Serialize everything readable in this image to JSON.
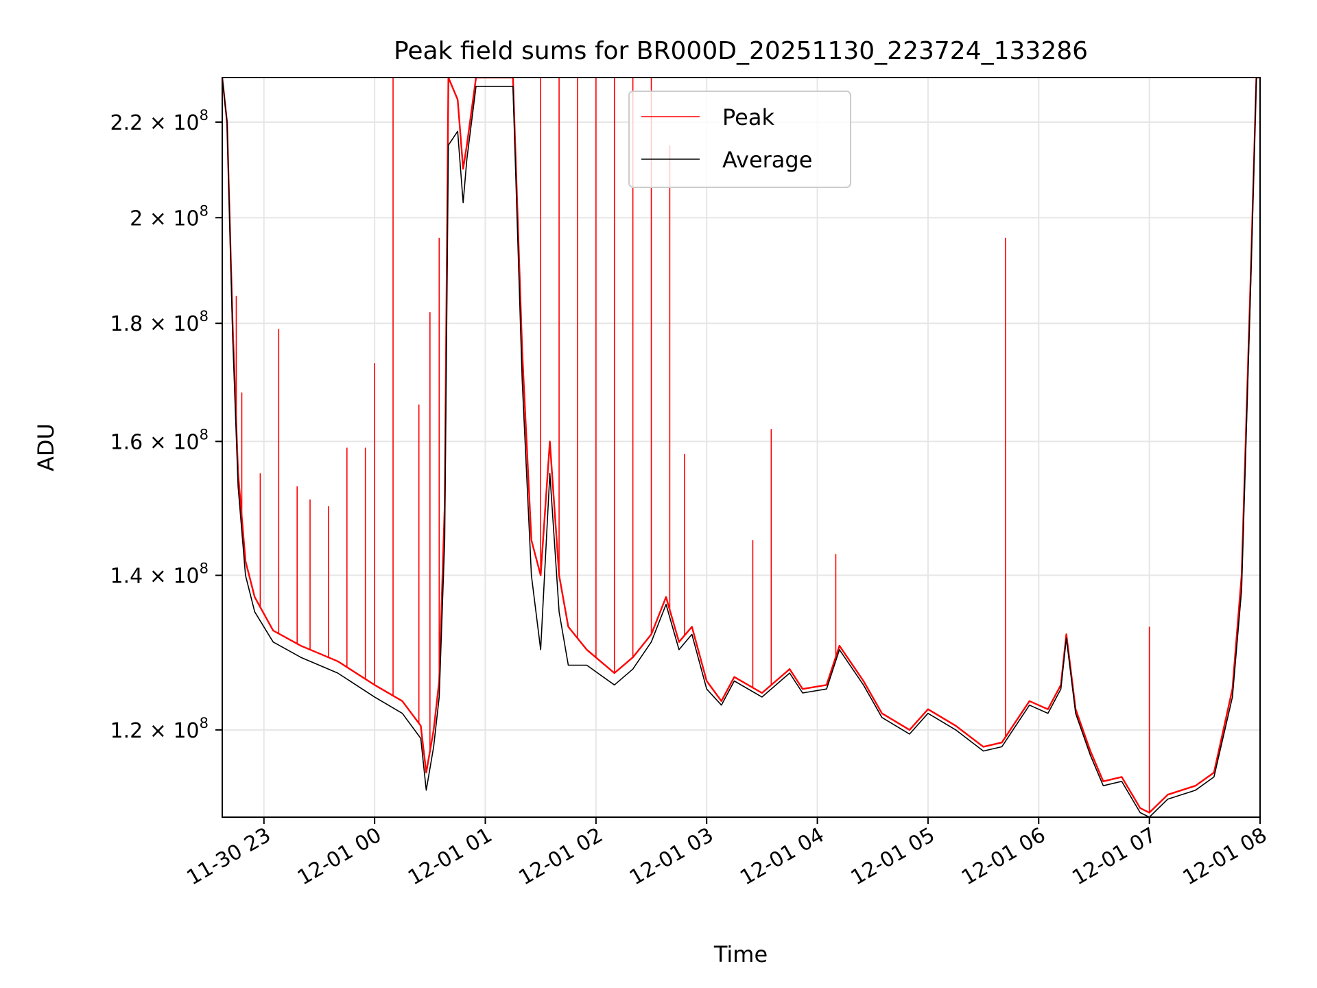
{
  "chart_data": {
    "type": "line",
    "title": "Peak field sums for BR000D_20251130_223724_133286",
    "xlabel": "Time",
    "ylabel": "ADU",
    "y_scale": "log",
    "xlim": [
      "2025-11-30T22:37:24",
      "2025-12-01T08:00:00"
    ],
    "ylim": [
      110000000.0,
      230000000.0
    ],
    "x_tick_labels": [
      "11-30 23",
      "12-01 00",
      "12-01 01",
      "12-01 02",
      "12-01 03",
      "12-01 04",
      "12-01 05",
      "12-01 06",
      "12-01 07",
      "12-01 08"
    ],
    "x_ticks": [
      "2025-11-30T23:00",
      "2025-12-01T00:00",
      "2025-12-01T01:00",
      "2025-12-01T02:00",
      "2025-12-01T03:00",
      "2025-12-01T04:00",
      "2025-12-01T05:00",
      "2025-12-01T06:00",
      "2025-12-01T07:00",
      "2025-12-01T08:00"
    ],
    "y_tick_labels": [
      {
        "mantissa": "1.2",
        "exponent": "8"
      },
      {
        "mantissa": "1.4",
        "exponent": "8"
      },
      {
        "mantissa": "1.6",
        "exponent": "8"
      },
      {
        "mantissa": "1.8",
        "exponent": "8"
      },
      {
        "mantissa": "2",
        "exponent": "8"
      },
      {
        "mantissa": "2.2",
        "exponent": "8"
      }
    ],
    "y_ticks": [
      120000000.0,
      140000000.0,
      160000000.0,
      180000000.0,
      200000000.0,
      220000000.0
    ],
    "grid": true,
    "legend_position": "upper-center",
    "series": [
      {
        "name": "Peak",
        "color": "#ff0000",
        "baseline": [
          [
            "2025-11-30T22:37:24",
            230000000.0
          ],
          [
            "2025-11-30T22:40",
            220000000.0
          ],
          [
            "2025-11-30T22:43",
            180000000.0
          ],
          [
            "2025-11-30T22:46",
            155000000.0
          ],
          [
            "2025-11-30T22:50",
            142000000.0
          ],
          [
            "2025-11-30T22:55",
            137000000.0
          ],
          [
            "2025-11-30T23:05",
            132500000.0
          ],
          [
            "2025-11-30T23:20",
            130500000.0
          ],
          [
            "2025-11-30T23:40",
            128500000.0
          ],
          [
            "2025-12-01T00:00",
            125500000.0
          ],
          [
            "2025-12-01T00:15",
            123500000.0
          ],
          [
            "2025-12-01T00:25",
            120500000.0
          ],
          [
            "2025-12-01T00:28",
            115000000.0
          ],
          [
            "2025-12-01T00:32",
            120000000.0
          ],
          [
            "2025-12-01T00:35",
            126000000.0
          ],
          [
            "2025-12-01T00:38",
            150000000.0
          ],
          [
            "2025-12-01T00:40",
            230000000.0
          ],
          [
            "2025-12-01T00:45",
            225000000.0
          ],
          [
            "2025-12-01T00:48",
            210000000.0
          ],
          [
            "2025-12-01T00:50",
            215000000.0
          ],
          [
            "2025-12-01T00:55",
            230000000.0
          ],
          [
            "2025-12-01T01:15",
            230000000.0
          ],
          [
            "2025-12-01T01:20",
            175000000.0
          ],
          [
            "2025-12-01T01:25",
            145000000.0
          ],
          [
            "2025-12-01T01:30",
            140000000.0
          ],
          [
            "2025-12-01T01:35",
            160000000.0
          ],
          [
            "2025-12-01T01:40",
            140000000.0
          ],
          [
            "2025-12-01T01:45",
            133000000.0
          ],
          [
            "2025-12-01T01:55",
            130000000.0
          ],
          [
            "2025-12-01T02:10",
            127000000.0
          ],
          [
            "2025-12-01T02:20",
            129000000.0
          ],
          [
            "2025-12-01T02:30",
            132000000.0
          ],
          [
            "2025-12-01T02:38",
            137000000.0
          ],
          [
            "2025-12-01T02:45",
            131000000.0
          ],
          [
            "2025-12-01T02:52",
            133000000.0
          ],
          [
            "2025-12-01T03:00",
            126000000.0
          ],
          [
            "2025-12-01T03:08",
            123500000.0
          ],
          [
            "2025-12-01T03:15",
            126500000.0
          ],
          [
            "2025-12-01T03:30",
            124500000.0
          ],
          [
            "2025-12-01T03:45",
            127500000.0
          ],
          [
            "2025-12-01T03:52",
            125000000.0
          ],
          [
            "2025-12-01T04:05",
            125500000.0
          ],
          [
            "2025-12-01T04:12",
            130500000.0
          ],
          [
            "2025-12-01T04:25",
            126000000.0
          ],
          [
            "2025-12-01T04:35",
            122000000.0
          ],
          [
            "2025-12-01T04:50",
            120000000.0
          ],
          [
            "2025-12-01T05:00",
            122500000.0
          ],
          [
            "2025-12-01T05:15",
            120500000.0
          ],
          [
            "2025-12-01T05:30",
            118000000.0
          ],
          [
            "2025-12-01T05:40",
            118500000.0
          ],
          [
            "2025-12-01T05:55",
            123500000.0
          ],
          [
            "2025-12-01T06:05",
            122500000.0
          ],
          [
            "2025-12-01T06:12",
            125500000.0
          ],
          [
            "2025-12-01T06:15",
            132000000.0
          ],
          [
            "2025-12-01T06:20",
            122500000.0
          ],
          [
            "2025-12-01T06:28",
            117500000.0
          ],
          [
            "2025-12-01T06:35",
            114000000.0
          ],
          [
            "2025-12-01T06:45",
            114500000.0
          ],
          [
            "2025-12-01T06:55",
            111000000.0
          ],
          [
            "2025-12-01T07:00",
            110500000.0
          ],
          [
            "2025-12-01T07:10",
            112500000.0
          ],
          [
            "2025-12-01T07:25",
            113500000.0
          ],
          [
            "2025-12-01T07:35",
            115000000.0
          ],
          [
            "2025-12-01T07:45",
            125000000.0
          ],
          [
            "2025-12-01T07:50",
            140000000.0
          ],
          [
            "2025-12-01T07:55",
            190000000.0
          ],
          [
            "2025-12-01T07:58",
            230000000.0
          ],
          [
            "2025-12-01T08:00",
            230000000.0
          ]
        ],
        "spikes": [
          [
            "2025-11-30T22:45",
            185000000.0
          ],
          [
            "2025-11-30T22:48",
            168000000.0
          ],
          [
            "2025-11-30T22:58",
            155000000.0
          ],
          [
            "2025-11-30T23:08",
            179000000.0
          ],
          [
            "2025-11-30T23:18",
            153000000.0
          ],
          [
            "2025-11-30T23:25",
            151000000.0
          ],
          [
            "2025-11-30T23:35",
            150000000.0
          ],
          [
            "2025-11-30T23:45",
            159000000.0
          ],
          [
            "2025-11-30T23:55",
            159000000.0
          ],
          [
            "2025-12-01T00:00",
            173000000.0
          ],
          [
            "2025-12-01T00:10",
            230000000.0
          ],
          [
            "2025-12-01T00:24",
            166000000.0
          ],
          [
            "2025-12-01T00:30",
            182000000.0
          ],
          [
            "2025-12-01T00:35",
            196000000.0
          ],
          [
            "2025-12-01T01:30",
            230000000.0
          ],
          [
            "2025-12-01T01:40",
            230000000.0
          ],
          [
            "2025-12-01T01:50",
            230000000.0
          ],
          [
            "2025-12-01T02:00",
            230000000.0
          ],
          [
            "2025-12-01T02:10",
            230000000.0
          ],
          [
            "2025-12-01T02:20",
            230000000.0
          ],
          [
            "2025-12-01T02:30",
            230000000.0
          ],
          [
            "2025-12-01T02:40",
            215000000.0
          ],
          [
            "2025-12-01T02:48",
            158000000.0
          ],
          [
            "2025-12-01T03:25",
            145000000.0
          ],
          [
            "2025-12-01T03:35",
            162000000.0
          ],
          [
            "2025-12-01T04:10",
            143000000.0
          ],
          [
            "2025-12-01T05:42",
            196000000.0
          ],
          [
            "2025-12-01T07:00",
            133000000.0
          ]
        ]
      },
      {
        "name": "Average",
        "color": "#000000",
        "baseline": [
          [
            "2025-11-30T22:37:24",
            230000000.0
          ],
          [
            "2025-11-30T22:40",
            220000000.0
          ],
          [
            "2025-11-30T22:43",
            178000000.0
          ],
          [
            "2025-11-30T22:46",
            153000000.0
          ],
          [
            "2025-11-30T22:50",
            140000000.0
          ],
          [
            "2025-11-30T22:55",
            135000000.0
          ],
          [
            "2025-11-30T23:05",
            131000000.0
          ],
          [
            "2025-11-30T23:20",
            129000000.0
          ],
          [
            "2025-11-30T23:40",
            127000000.0
          ],
          [
            "2025-12-01T00:00",
            124000000.0
          ],
          [
            "2025-12-01T00:15",
            122000000.0
          ],
          [
            "2025-12-01T00:25",
            119000000.0
          ],
          [
            "2025-12-01T00:28",
            113000000.0
          ],
          [
            "2025-12-01T00:32",
            118000000.0
          ],
          [
            "2025-12-01T00:35",
            124000000.0
          ],
          [
            "2025-12-01T00:38",
            145000000.0
          ],
          [
            "2025-12-01T00:40",
            215000000.0
          ],
          [
            "2025-12-01T00:45",
            218000000.0
          ],
          [
            "2025-12-01T00:48",
            203000000.0
          ],
          [
            "2025-12-01T00:50",
            212000000.0
          ],
          [
            "2025-12-01T00:55",
            228000000.0
          ],
          [
            "2025-12-01T01:15",
            228000000.0
          ],
          [
            "2025-12-01T01:20",
            170000000.0
          ],
          [
            "2025-12-01T01:25",
            140000000.0
          ],
          [
            "2025-12-01T01:30",
            130000000.0
          ],
          [
            "2025-12-01T01:35",
            155000000.0
          ],
          [
            "2025-12-01T01:40",
            135000000.0
          ],
          [
            "2025-12-01T01:45",
            128000000.0
          ],
          [
            "2025-12-01T01:55",
            128000000.0
          ],
          [
            "2025-12-01T02:10",
            125500000.0
          ],
          [
            "2025-12-01T02:20",
            127500000.0
          ],
          [
            "2025-12-01T02:30",
            131000000.0
          ],
          [
            "2025-12-01T02:38",
            136000000.0
          ],
          [
            "2025-12-01T02:45",
            130000000.0
          ],
          [
            "2025-12-01T02:52",
            132000000.0
          ],
          [
            "2025-12-01T03:00",
            125000000.0
          ],
          [
            "2025-12-01T03:08",
            123000000.0
          ],
          [
            "2025-12-01T03:15",
            126000000.0
          ],
          [
            "2025-12-01T03:30",
            124000000.0
          ],
          [
            "2025-12-01T03:45",
            127000000.0
          ],
          [
            "2025-12-01T03:52",
            124500000.0
          ],
          [
            "2025-12-01T04:05",
            125000000.0
          ],
          [
            "2025-12-01T04:12",
            130000000.0
          ],
          [
            "2025-12-01T04:25",
            125500000.0
          ],
          [
            "2025-12-01T04:35",
            121500000.0
          ],
          [
            "2025-12-01T04:50",
            119500000.0
          ],
          [
            "2025-12-01T05:00",
            122000000.0
          ],
          [
            "2025-12-01T05:15",
            120000000.0
          ],
          [
            "2025-12-01T05:30",
            117500000.0
          ],
          [
            "2025-12-01T05:40",
            118000000.0
          ],
          [
            "2025-12-01T05:55",
            123000000.0
          ],
          [
            "2025-12-01T06:05",
            122000000.0
          ],
          [
            "2025-12-01T06:12",
            125000000.0
          ],
          [
            "2025-12-01T06:15",
            131500000.0
          ],
          [
            "2025-12-01T06:20",
            122000000.0
          ],
          [
            "2025-12-01T06:28",
            117000000.0
          ],
          [
            "2025-12-01T06:35",
            113500000.0
          ],
          [
            "2025-12-01T06:45",
            114000000.0
          ],
          [
            "2025-12-01T06:55",
            110500000.0
          ],
          [
            "2025-12-01T07:00",
            110000000.0
          ],
          [
            "2025-12-01T07:10",
            112000000.0
          ],
          [
            "2025-12-01T07:25",
            113000000.0
          ],
          [
            "2025-12-01T07:35",
            114500000.0
          ],
          [
            "2025-12-01T07:45",
            124000000.0
          ],
          [
            "2025-12-01T07:50",
            138000000.0
          ],
          [
            "2025-12-01T07:55",
            188000000.0
          ],
          [
            "2025-12-01T07:58",
            230000000.0
          ],
          [
            "2025-12-01T08:00",
            230000000.0
          ]
        ]
      }
    ]
  }
}
